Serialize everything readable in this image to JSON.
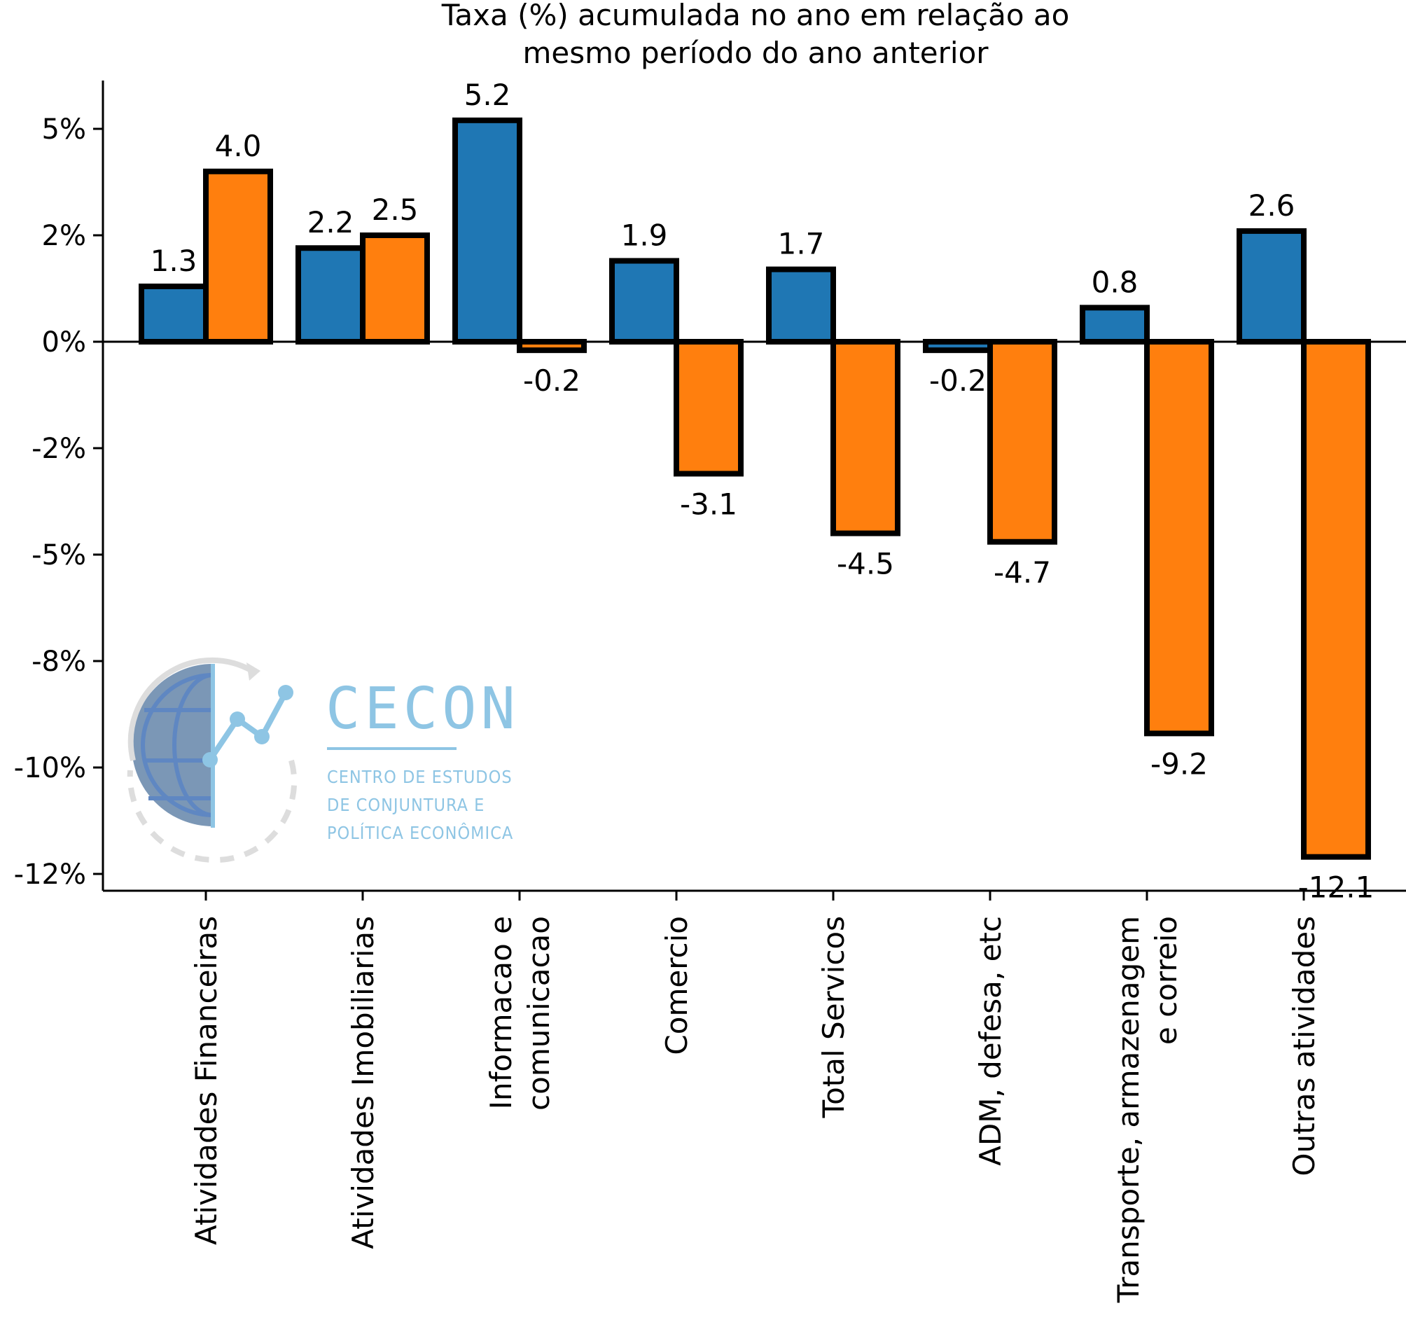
{
  "chart_data": {
    "type": "bar",
    "title": "Taxa (%) acumulada no ano em relação ao\nmesmo período do ano anterior",
    "xlabel": "",
    "ylabel": "",
    "categories": [
      "Atividades Financeiras",
      "Atividades Imobiliarias",
      "Informacao e\ncomunicacao",
      "Comercio",
      "Total Servicos",
      "ADM, defesa, etc",
      "Transporte, armazenagem\ne correio",
      "Outras atividades"
    ],
    "series": [
      {
        "color": "#1f77b4",
        "values": [
          1.3,
          2.2,
          5.2,
          1.9,
          1.7,
          -0.2,
          0.8,
          2.6
        ]
      },
      {
        "color": "#ff7f0e",
        "values": [
          4.0,
          2.5,
          -0.2,
          -3.1,
          -4.5,
          -4.7,
          -9.2,
          -12.1
        ]
      }
    ],
    "y_tick_labels": [
      "5%",
      "2%",
      "0%",
      "-2%",
      "-5%",
      "-8%",
      "-10%",
      "-12%"
    ],
    "y_tick_values": [
      5,
      2.5,
      0,
      -2.5,
      -5,
      -7.5,
      -10,
      -12.5
    ],
    "ylim": [
      -12.9,
      6.2
    ],
    "grid": false,
    "legend": "none",
    "bar_edge_color": "#000000"
  },
  "logo": {
    "name": "CECON",
    "subtitle_lines": [
      "CENTRO DE ESTUDOS",
      "DE CONJUNTURA E",
      "POLÍTICA ECONÔMICA"
    ]
  }
}
